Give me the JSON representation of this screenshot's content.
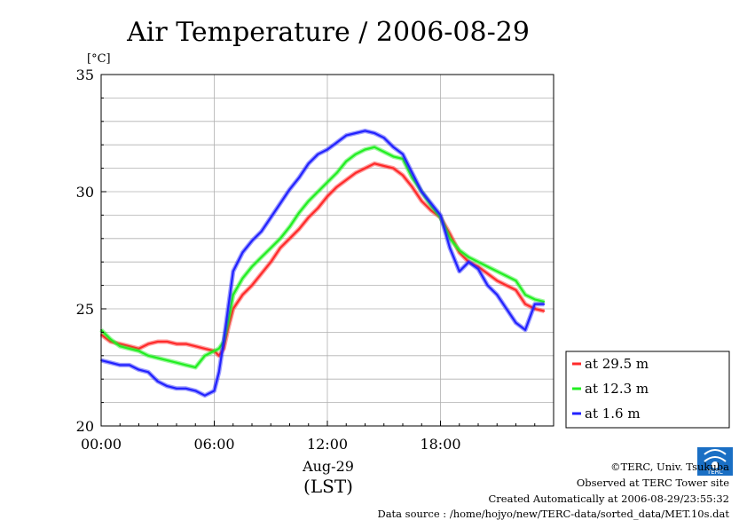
{
  "chart_data": {
    "type": "line",
    "title": "Air Temperature / 2006-08-29",
    "yunit": "[°C]",
    "ylim": [
      20,
      35
    ],
    "yticks": [
      20,
      25,
      30,
      35
    ],
    "xlim": [
      0,
      24
    ],
    "xticks": [
      {
        "hour": 0,
        "label": "00:00"
      },
      {
        "hour": 6,
        "label": "06:00"
      },
      {
        "hour": 12,
        "label": "12:00"
      },
      {
        "hour": 18,
        "label": "18:00"
      }
    ],
    "date_label": "Aug-29",
    "xlabel": "(LST)",
    "grid": true,
    "legend_position": "right-bottom",
    "series": [
      {
        "name": "at 29.5 m",
        "color": "#ff2a2a",
        "x": [
          0,
          0.5,
          1,
          1.5,
          2,
          2.5,
          3,
          3.5,
          4,
          4.5,
          5,
          5.5,
          6,
          6.25,
          6.5,
          6.75,
          7,
          7.5,
          8,
          8.5,
          9,
          9.5,
          10,
          10.5,
          11,
          11.5,
          12,
          12.5,
          13,
          13.5,
          14,
          14.5,
          15,
          15.5,
          16,
          16.5,
          17,
          17.5,
          18,
          18.5,
          19,
          19.5,
          20,
          20.5,
          21,
          21.5,
          22,
          22.5,
          23,
          23.5
        ],
        "y": [
          23.9,
          23.6,
          23.5,
          23.4,
          23.3,
          23.5,
          23.6,
          23.6,
          23.5,
          23.5,
          23.4,
          23.3,
          23.2,
          23.0,
          23.3,
          24.2,
          25.0,
          25.6,
          26.0,
          26.5,
          27.0,
          27.6,
          28.0,
          28.4,
          28.9,
          29.3,
          29.8,
          30.2,
          30.5,
          30.8,
          31.0,
          31.2,
          31.1,
          31.0,
          30.7,
          30.2,
          29.6,
          29.2,
          28.9,
          28.2,
          27.4,
          27.0,
          26.8,
          26.5,
          26.2,
          26.0,
          25.8,
          25.2,
          25.0,
          24.9
        ]
      },
      {
        "name": "at 12.3 m",
        "color": "#22ee22",
        "x": [
          0,
          0.5,
          1,
          1.5,
          2,
          2.5,
          3,
          3.5,
          4,
          4.5,
          5,
          5.5,
          6,
          6.25,
          6.5,
          6.75,
          7,
          7.5,
          8,
          8.5,
          9,
          9.5,
          10,
          10.5,
          11,
          11.5,
          12,
          12.5,
          13,
          13.5,
          14,
          14.5,
          15,
          15.5,
          16,
          16.5,
          17,
          17.5,
          18,
          18.5,
          19,
          19.5,
          20,
          20.5,
          21,
          21.5,
          22,
          22.5,
          23,
          23.5
        ],
        "y": [
          24.1,
          23.7,
          23.4,
          23.3,
          23.2,
          23.0,
          22.9,
          22.8,
          22.7,
          22.6,
          22.5,
          23.0,
          23.2,
          23.3,
          23.6,
          24.5,
          25.6,
          26.3,
          26.8,
          27.2,
          27.6,
          28.0,
          28.5,
          29.1,
          29.6,
          30.0,
          30.4,
          30.8,
          31.3,
          31.6,
          31.8,
          31.9,
          31.7,
          31.5,
          31.4,
          30.6,
          30.0,
          29.4,
          28.9,
          28.0,
          27.5,
          27.2,
          27.0,
          26.8,
          26.6,
          26.4,
          26.2,
          25.6,
          25.4,
          25.3
        ]
      },
      {
        "name": "at 1.6 m",
        "color": "#2222ff",
        "x": [
          0,
          0.5,
          1,
          1.5,
          2,
          2.5,
          3,
          3.5,
          4,
          4.5,
          5,
          5.5,
          6,
          6.25,
          6.5,
          6.75,
          7,
          7.5,
          8,
          8.5,
          9,
          9.5,
          10,
          10.5,
          11,
          11.5,
          12,
          12.5,
          13,
          13.5,
          14,
          14.5,
          15,
          15.5,
          16,
          16.5,
          17,
          17.5,
          18,
          18.5,
          19,
          19.5,
          20,
          20.5,
          21,
          21.5,
          22,
          22.5,
          23,
          23.5
        ],
        "y": [
          22.8,
          22.7,
          22.6,
          22.6,
          22.4,
          22.3,
          21.9,
          21.7,
          21.6,
          21.6,
          21.5,
          21.3,
          21.5,
          22.3,
          23.6,
          25.1,
          26.6,
          27.4,
          27.9,
          28.3,
          28.9,
          29.5,
          30.1,
          30.6,
          31.2,
          31.6,
          31.8,
          32.1,
          32.4,
          32.5,
          32.6,
          32.5,
          32.3,
          31.9,
          31.6,
          30.8,
          30.0,
          29.5,
          29.0,
          27.6,
          26.6,
          27.0,
          26.7,
          26.0,
          25.6,
          25.0,
          24.4,
          24.1,
          25.2,
          25.2
        ]
      }
    ]
  },
  "footer": {
    "copyright": "©TERC, Univ. Tsukuba",
    "observed": "Observed at TERC Tower site",
    "created": "Created Automatically at 2006-08-29/23:55:32",
    "source": "Data source : /home/hojyo/new/TERC-data/sorted_data/MET.10s.dat",
    "logo_text": "TERC"
  }
}
